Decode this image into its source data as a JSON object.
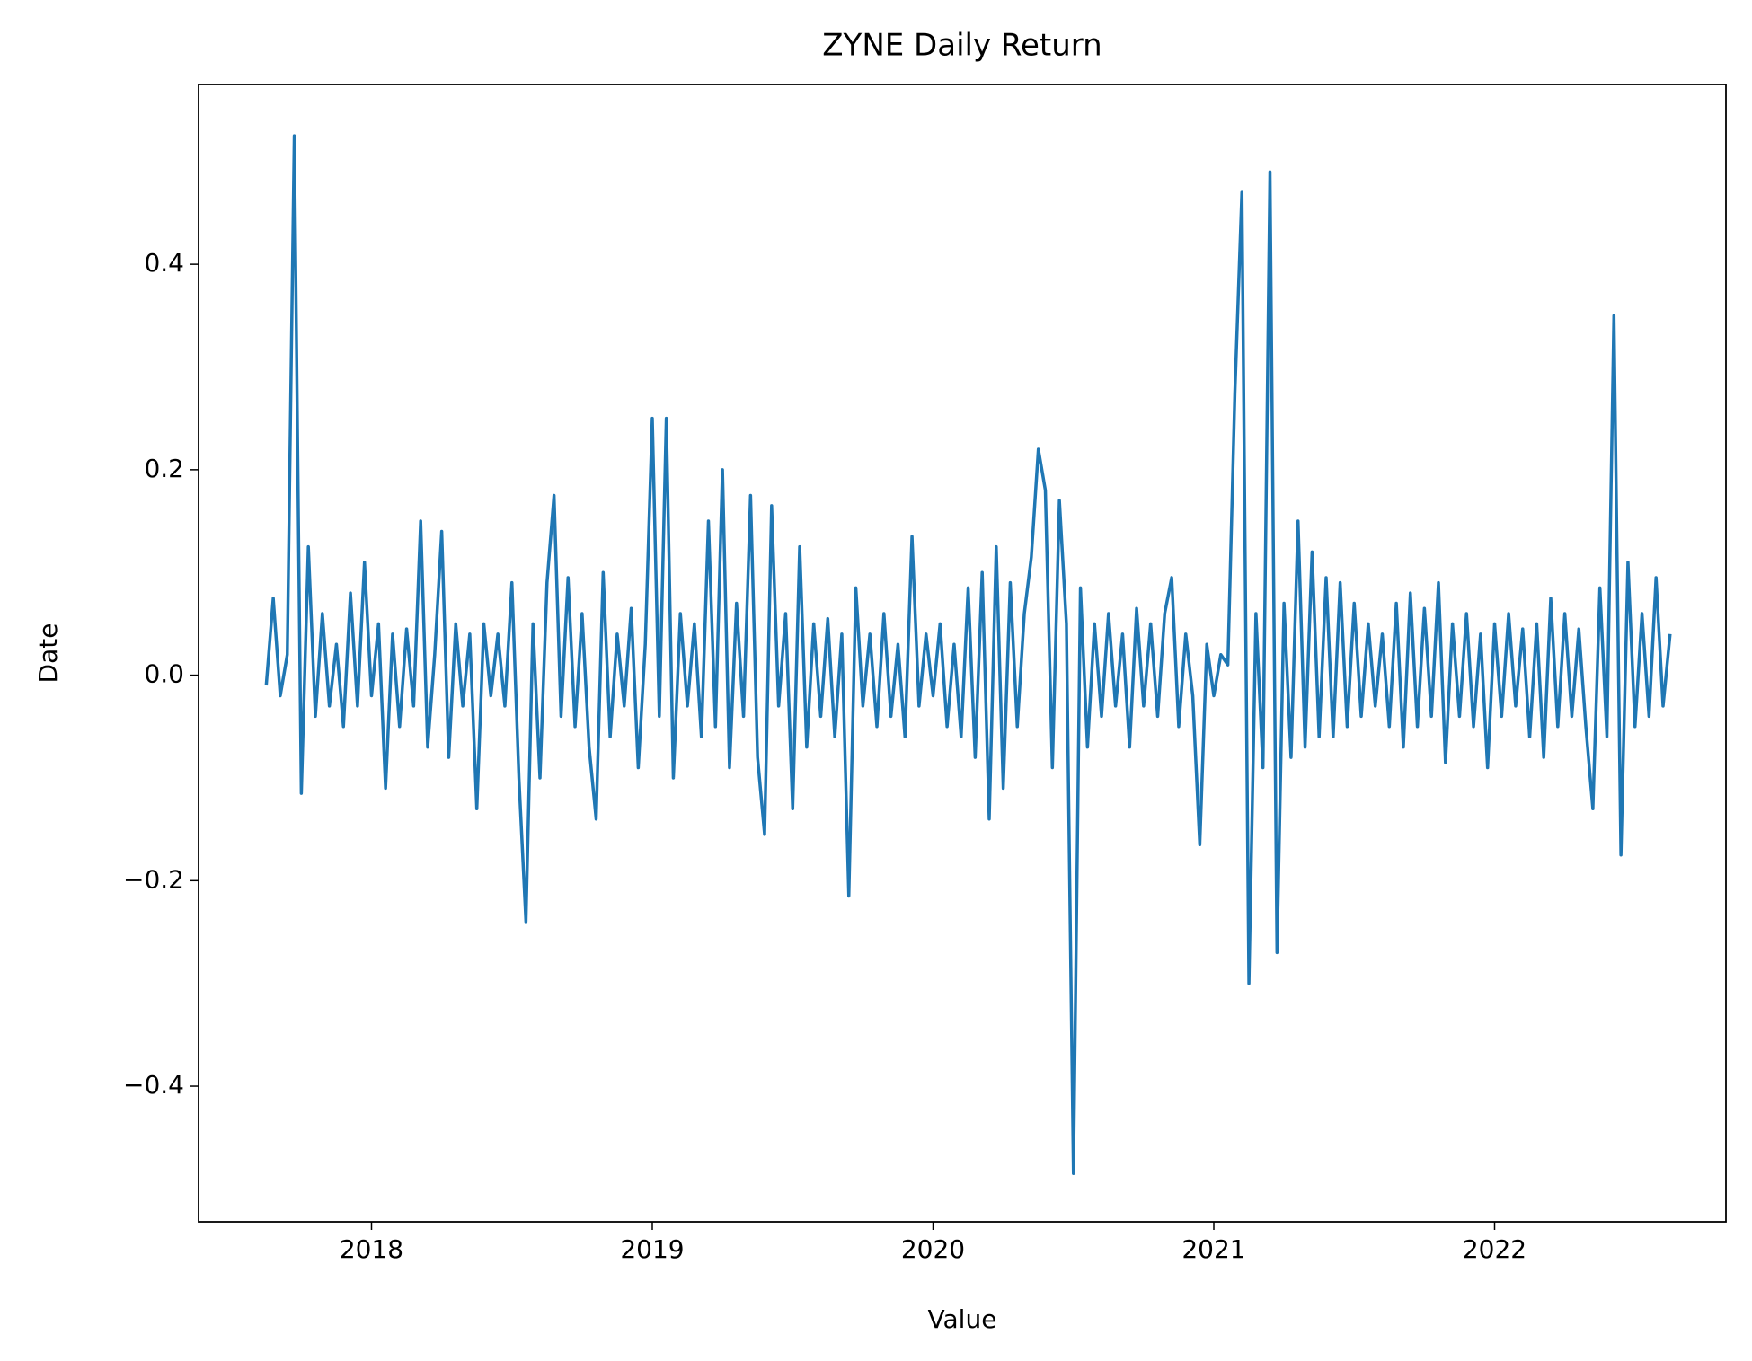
{
  "chart_data": {
    "type": "line",
    "title": "ZYNE Daily Return",
    "x_label": "Value",
    "y_label": "Date",
    "color": "#1f77b4",
    "grid": false,
    "xlim": [
      2017.384,
      2022.824
    ],
    "xticks": [
      2018,
      2019,
      2020,
      2021,
      2022
    ],
    "ylim": [
      -0.532,
      0.575
    ],
    "yticks": [
      {
        "value": -0.4,
        "label": "−0.4"
      },
      {
        "value": -0.2,
        "label": "−0.2"
      },
      {
        "value": 0,
        "label": "0.0"
      },
      0.2,
      0.4
    ],
    "x": [
      2017.625,
      2017.65,
      2017.675,
      2017.7,
      2017.725,
      2017.75,
      2017.775,
      2017.8,
      2017.825,
      2017.85,
      2017.875,
      2017.9,
      2017.925,
      2017.95,
      2017.975,
      2018,
      2018.025,
      2018.05,
      2018.075,
      2018.1,
      2018.125,
      2018.15,
      2018.175,
      2018.2,
      2018.225,
      2018.25,
      2018.275,
      2018.3,
      2018.325,
      2018.35,
      2018.375,
      2018.4,
      2018.425,
      2018.45,
      2018.475,
      2018.5,
      2018.525,
      2018.55,
      2018.575,
      2018.6,
      2018.625,
      2018.65,
      2018.675,
      2018.7,
      2018.725,
      2018.75,
      2018.775,
      2018.8,
      2018.825,
      2018.85,
      2018.875,
      2018.9,
      2018.925,
      2018.95,
      2018.975,
      2019,
      2019.025,
      2019.05,
      2019.075,
      2019.1,
      2019.125,
      2019.15,
      2019.175,
      2019.2,
      2019.225,
      2019.25,
      2019.275,
      2019.3,
      2019.325,
      2019.35,
      2019.375,
      2019.4,
      2019.425,
      2019.45,
      2019.475,
      2019.5,
      2019.525,
      2019.55,
      2019.575,
      2019.6,
      2019.625,
      2019.65,
      2019.675,
      2019.7,
      2019.725,
      2019.75,
      2019.775,
      2019.8,
      2019.825,
      2019.85,
      2019.875,
      2019.9,
      2019.925,
      2019.95,
      2019.975,
      2020,
      2020.025,
      2020.05,
      2020.075,
      2020.1,
      2020.125,
      2020.15,
      2020.175,
      2020.2,
      2020.225,
      2020.25,
      2020.275,
      2020.3,
      2020.325,
      2020.35,
      2020.375,
      2020.4,
      2020.425,
      2020.45,
      2020.475,
      2020.5,
      2020.525,
      2020.55,
      2020.575,
      2020.6,
      2020.625,
      2020.65,
      2020.675,
      2020.7,
      2020.725,
      2020.75,
      2020.775,
      2020.8,
      2020.825,
      2020.85,
      2020.875,
      2020.9,
      2020.925,
      2020.95,
      2020.975,
      2021,
      2021.025,
      2021.05,
      2021.075,
      2021.1,
      2021.125,
      2021.15,
      2021.175,
      2021.2,
      2021.225,
      2021.25,
      2021.275,
      2021.3,
      2021.325,
      2021.35,
      2021.375,
      2021.4,
      2021.425,
      2021.45,
      2021.475,
      2021.5,
      2021.525,
      2021.55,
      2021.575,
      2021.6,
      2021.625,
      2021.65,
      2021.675,
      2021.7,
      2021.725,
      2021.75,
      2021.775,
      2021.8,
      2021.825,
      2021.85,
      2021.875,
      2021.9,
      2021.925,
      2021.95,
      2021.975,
      2022,
      2022.025,
      2022.05,
      2022.075,
      2022.1,
      2022.125,
      2022.15,
      2022.175,
      2022.2,
      2022.225,
      2022.25,
      2022.275,
      2022.3,
      2022.325,
      2022.35,
      2022.375,
      2022.4,
      2022.425,
      2022.45,
      2022.475,
      2022.5,
      2022.525,
      2022.55,
      2022.575,
      2022.6,
      2022.625
    ],
    "values": [
      -0.01,
      0.075,
      -0.02,
      0.02,
      0.525,
      -0.115,
      0.125,
      -0.04,
      0.06,
      -0.03,
      0.03,
      -0.05,
      0.08,
      -0.03,
      0.11,
      -0.02,
      0.05,
      -0.11,
      0.04,
      -0.05,
      0.045,
      -0.03,
      0.15,
      -0.07,
      0.02,
      0.14,
      -0.08,
      0.05,
      -0.03,
      0.04,
      -0.13,
      0.05,
      -0.02,
      0.04,
      -0.03,
      0.09,
      -0.1,
      -0.24,
      0.05,
      -0.1,
      0.09,
      0.175,
      -0.04,
      0.095,
      -0.05,
      0.06,
      -0.07,
      -0.14,
      0.1,
      -0.06,
      0.04,
      -0.03,
      0.065,
      -0.09,
      0.03,
      0.25,
      -0.04,
      0.25,
      -0.1,
      0.06,
      -0.03,
      0.05,
      -0.06,
      0.15,
      -0.05,
      0.2,
      -0.09,
      0.07,
      -0.04,
      0.175,
      -0.08,
      -0.155,
      0.165,
      -0.03,
      0.06,
      -0.13,
      0.125,
      -0.07,
      0.05,
      -0.04,
      0.055,
      -0.06,
      0.04,
      -0.215,
      0.085,
      -0.03,
      0.04,
      -0.05,
      0.06,
      -0.04,
      0.03,
      -0.06,
      0.135,
      -0.03,
      0.04,
      -0.02,
      0.05,
      -0.05,
      0.03,
      -0.06,
      0.085,
      -0.08,
      0.1,
      -0.14,
      0.125,
      -0.11,
      0.09,
      -0.05,
      0.06,
      0.115,
      0.22,
      0.18,
      -0.09,
      0.17,
      0.05,
      -0.485,
      0.085,
      -0.07,
      0.05,
      -0.04,
      0.06,
      -0.03,
      0.04,
      -0.07,
      0.065,
      -0.03,
      0.05,
      -0.04,
      0.06,
      0.095,
      -0.05,
      0.04,
      -0.02,
      -0.165,
      0.03,
      -0.02,
      0.02,
      0.01,
      0.275,
      0.47,
      -0.3,
      0.06,
      -0.09,
      0.49,
      -0.27,
      0.07,
      -0.08,
      0.15,
      -0.07,
      0.12,
      -0.06,
      0.095,
      -0.06,
      0.09,
      -0.05,
      0.07,
      -0.04,
      0.05,
      -0.03,
      0.04,
      -0.05,
      0.07,
      -0.07,
      0.08,
      -0.05,
      0.065,
      -0.04,
      0.09,
      -0.085,
      0.05,
      -0.04,
      0.06,
      -0.05,
      0.04,
      -0.09,
      0.05,
      -0.04,
      0.06,
      -0.03,
      0.045,
      -0.06,
      0.05,
      -0.08,
      0.075,
      -0.05,
      0.06,
      -0.04,
      0.045,
      -0.05,
      -0.13,
      0.085,
      -0.06,
      0.35,
      -0.175,
      0.11,
      -0.05,
      0.06,
      -0.04,
      0.095,
      -0.03,
      0.04
    ]
  }
}
